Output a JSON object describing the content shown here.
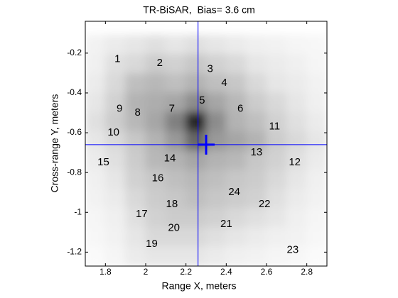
{
  "chart_data": {
    "type": "heatmap",
    "title": "TR-BiSAR,  Bias= 3.6 cm",
    "xlabel": "Range X, meters",
    "ylabel": "Cross-range Y, meters",
    "xlim": [
      1.7,
      2.9
    ],
    "ylim": [
      -1.27,
      -0.04
    ],
    "xticks": [
      1.8,
      2,
      2.2,
      2.4,
      2.6,
      2.8
    ],
    "yticks": [
      -0.2,
      -0.4,
      -0.6,
      -0.8,
      -1,
      -1.2
    ],
    "colormap": "gray",
    "zx": [
      1.7,
      2.9
    ],
    "zy": [
      -1.27,
      -0.11
    ],
    "z": [
      [
        0.05,
        0.08,
        0.1,
        0.12,
        0.1,
        0.12,
        0.1,
        0.08,
        0.06,
        0.05,
        0.04,
        0.03
      ],
      [
        0.06,
        0.12,
        0.15,
        0.2,
        0.18,
        0.22,
        0.18,
        0.15,
        0.1,
        0.08,
        0.06,
        0.04
      ],
      [
        0.08,
        0.15,
        0.25,
        0.28,
        0.25,
        0.3,
        0.25,
        0.22,
        0.15,
        0.1,
        0.08,
        0.05
      ],
      [
        0.1,
        0.18,
        0.3,
        0.32,
        0.35,
        0.45,
        0.35,
        0.28,
        0.2,
        0.15,
        0.1,
        0.06
      ],
      [
        0.12,
        0.2,
        0.28,
        0.35,
        0.5,
        0.85,
        0.45,
        0.3,
        0.25,
        0.18,
        0.12,
        0.08
      ],
      [
        0.1,
        0.15,
        0.22,
        0.3,
        0.4,
        0.6,
        0.4,
        0.35,
        0.3,
        0.2,
        0.15,
        0.1
      ],
      [
        0.08,
        0.12,
        0.2,
        0.28,
        0.3,
        0.35,
        0.3,
        0.28,
        0.22,
        0.18,
        0.12,
        0.08
      ],
      [
        0.06,
        0.1,
        0.18,
        0.22,
        0.25,
        0.28,
        0.25,
        0.22,
        0.2,
        0.15,
        0.1,
        0.06
      ],
      [
        0.05,
        0.08,
        0.15,
        0.2,
        0.22,
        0.25,
        0.22,
        0.2,
        0.18,
        0.12,
        0.08,
        0.05
      ],
      [
        0.04,
        0.06,
        0.12,
        0.18,
        0.2,
        0.2,
        0.18,
        0.15,
        0.12,
        0.1,
        0.06,
        0.04
      ],
      [
        0.03,
        0.05,
        0.1,
        0.15,
        0.15,
        0.15,
        0.12,
        0.1,
        0.08,
        0.06,
        0.05,
        0.03
      ],
      [
        0.02,
        0.04,
        0.08,
        0.1,
        0.1,
        0.1,
        0.08,
        0.06,
        0.05,
        0.04,
        0.03,
        0.02
      ]
    ],
    "crosshair": {
      "x": 2.26,
      "y": -0.66,
      "color": "#0000ff"
    },
    "marker": {
      "x": 2.3,
      "y": -0.66,
      "color": "#0000ff"
    },
    "annotations": [
      {
        "text": "1",
        "x": 1.86,
        "y": -0.23
      },
      {
        "text": "2",
        "x": 2.07,
        "y": -0.25
      },
      {
        "text": "3",
        "x": 2.32,
        "y": -0.28
      },
      {
        "text": "4",
        "x": 2.39,
        "y": -0.35
      },
      {
        "text": "5",
        "x": 2.28,
        "y": -0.44
      },
      {
        "text": "6",
        "x": 2.47,
        "y": -0.48
      },
      {
        "text": "7",
        "x": 2.13,
        "y": -0.48
      },
      {
        "text": "8",
        "x": 1.96,
        "y": -0.5
      },
      {
        "text": "9",
        "x": 1.87,
        "y": -0.48
      },
      {
        "text": "10",
        "x": 1.84,
        "y": -0.6
      },
      {
        "text": "11",
        "x": 2.64,
        "y": -0.57
      },
      {
        "text": "12",
        "x": 2.74,
        "y": -0.75
      },
      {
        "text": "13",
        "x": 2.55,
        "y": -0.7
      },
      {
        "text": "14",
        "x": 2.12,
        "y": -0.73
      },
      {
        "text": "15",
        "x": 1.79,
        "y": -0.75
      },
      {
        "text": "16",
        "x": 2.06,
        "y": -0.83
      },
      {
        "text": "17",
        "x": 1.98,
        "y": -1.01
      },
      {
        "text": "18",
        "x": 2.13,
        "y": -0.96
      },
      {
        "text": "19",
        "x": 2.03,
        "y": -1.16
      },
      {
        "text": "20",
        "x": 2.14,
        "y": -1.08
      },
      {
        "text": "21",
        "x": 2.4,
        "y": -1.06
      },
      {
        "text": "22",
        "x": 2.59,
        "y": -0.96
      },
      {
        "text": "23",
        "x": 2.73,
        "y": -1.19
      },
      {
        "text": "24",
        "x": 2.44,
        "y": -0.9
      }
    ]
  }
}
